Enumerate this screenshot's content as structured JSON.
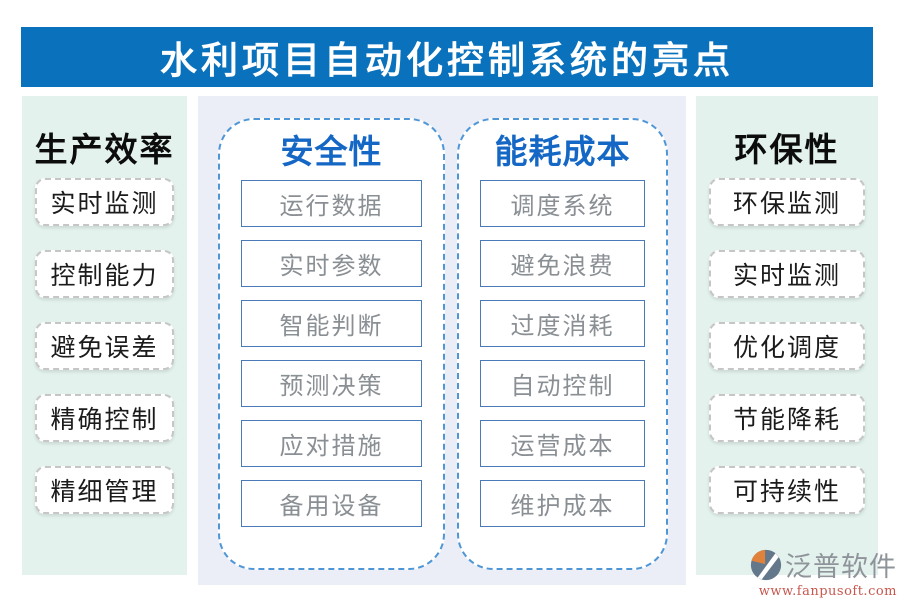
{
  "page": {
    "title": "水利项目自动化控制系统的亮点"
  },
  "columns": [
    {
      "id": "production-efficiency",
      "label": "生产效率",
      "items": [
        "实时监测",
        "控制能力",
        "避免误差",
        "精确控制",
        "精细管理"
      ]
    },
    {
      "id": "safety",
      "label": "安全性",
      "items": [
        "运行数据",
        "实时参数",
        "智能判断",
        "预测决策",
        "应对措施",
        "备用设备"
      ]
    },
    {
      "id": "energy-cost",
      "label": "能耗成本",
      "items": [
        "调度系统",
        "避免浪费",
        "过度消耗",
        "自动控制",
        "运营成本",
        "维护成本"
      ]
    },
    {
      "id": "environmental",
      "label": "环保性",
      "items": [
        "环保监测",
        "实时监测",
        "优化调度",
        "节能降耗",
        "可持续性"
      ]
    }
  ],
  "footer": {
    "brand": "泛普软件",
    "website": "www.fanpusoft.com"
  },
  "colors": {
    "header_bar": "#0a71bc",
    "header_text": "#ffffff",
    "side_panel_bg": "#e3f2ec",
    "center_panel_bg": "#ebeef7",
    "container_border": "#4e96d6",
    "container_title": "#1467c4",
    "item_border": "#4a7ab8",
    "item_text": "#8a8f94",
    "side_item_border": "#c6c6c6",
    "side_item_text": "#1b1b1b",
    "brand_text": "#8f949a",
    "website_text": "#c7564e",
    "logo_orange": "#e0823c",
    "logo_slate": "#64788c"
  }
}
